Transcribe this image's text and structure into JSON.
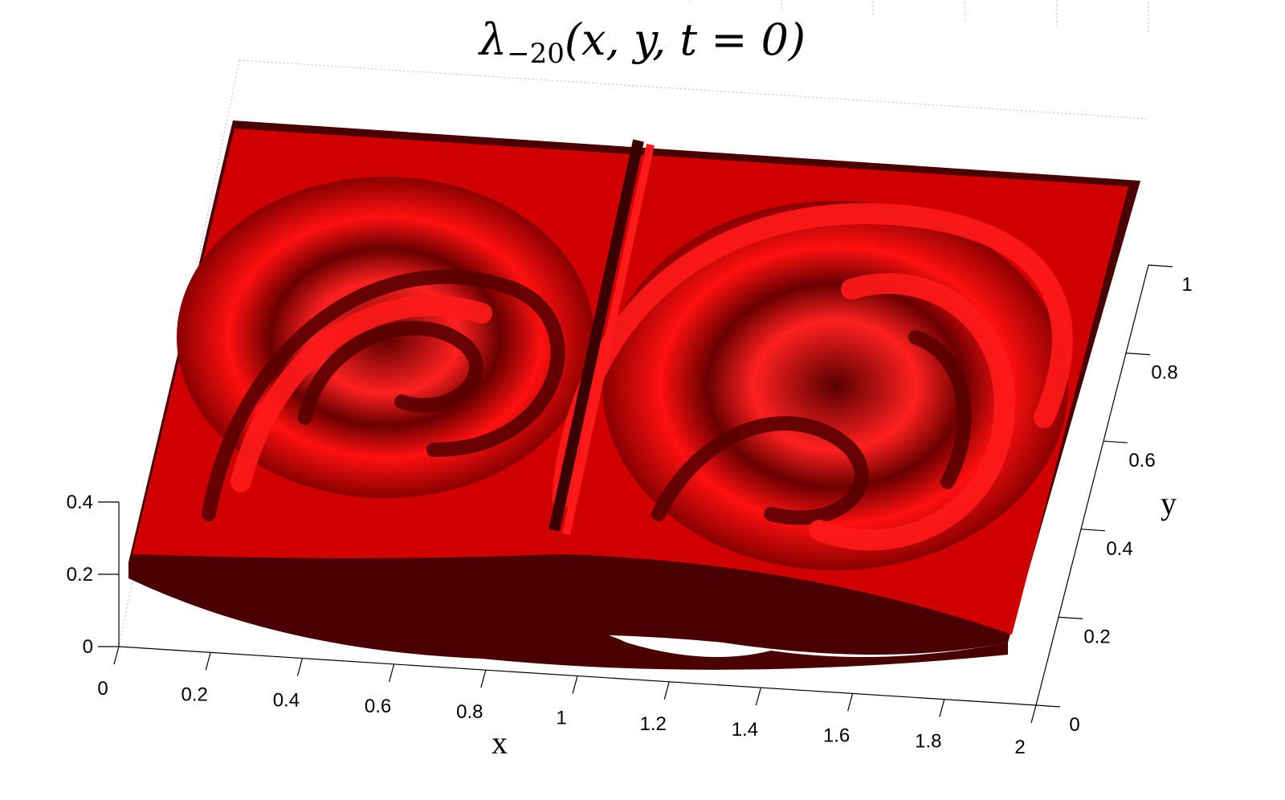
{
  "chart_data": {
    "type": "surface",
    "title": {
      "symbol": "λ",
      "subscript": "−20",
      "args": "(x, y, t = 0)"
    },
    "xlabel": "x",
    "ylabel": "y",
    "zlabel": "",
    "x_ticks": [
      "0",
      "0.2",
      "0.4",
      "0.6",
      "0.8",
      "1",
      "1.2",
      "1.4",
      "1.6",
      "1.8",
      "2"
    ],
    "y_ticks": [
      "0",
      "0.2",
      "0.4",
      "0.6",
      "0.8",
      "1"
    ],
    "z_ticks": [
      "0",
      "0.2",
      "0.4"
    ],
    "xlim": [
      0,
      2
    ],
    "ylim": [
      0,
      1
    ],
    "zlim": [
      0,
      0.5
    ],
    "grid": true,
    "colors": {
      "surface_light": "#ff1a1a",
      "surface_mid": "#d00000",
      "surface_dark": "#4a0000",
      "axis": "#000000",
      "grid": "#bbbbbb"
    }
  }
}
